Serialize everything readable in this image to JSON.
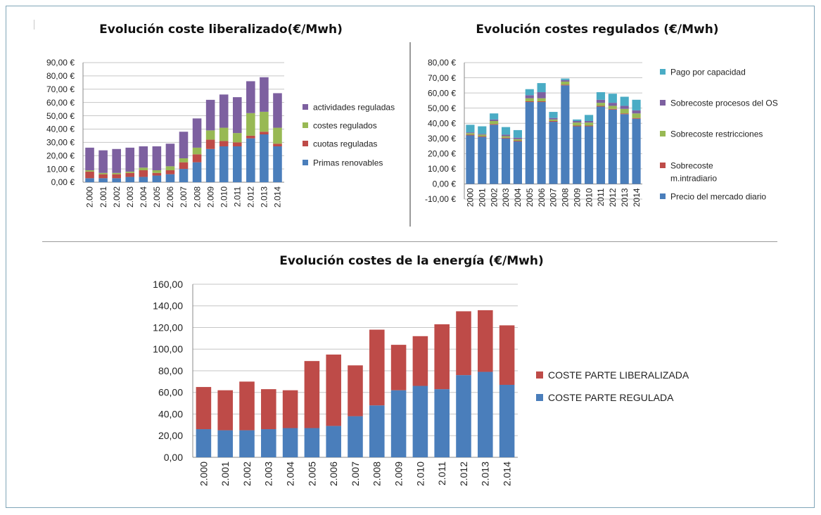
{
  "chart_data": [
    {
      "type": "bar",
      "stacked": true,
      "title": "Evolución coste liberalizado(€/Mwh)",
      "categories": [
        "2.000",
        "2.001",
        "2.002",
        "2.003",
        "2.004",
        "2.005",
        "2.006",
        "2.007",
        "2.008",
        "2.009",
        "2.010",
        "2.011",
        "2.012",
        "2.013",
        "2.014"
      ],
      "series": [
        {
          "name": "Primas renovables",
          "color": "#4a7ebb",
          "values": [
            3,
            3,
            3,
            4,
            4,
            5,
            6,
            10,
            15,
            25,
            27,
            27,
            33,
            36,
            27
          ]
        },
        {
          "name": "cuotas reguladas",
          "color": "#be4b48",
          "values": [
            5,
            3,
            3,
            3,
            5,
            2,
            3,
            5,
            6,
            7,
            4,
            3,
            2,
            2,
            2
          ]
        },
        {
          "name": "costes regulados",
          "color": "#98b954",
          "values": [
            1,
            1,
            1,
            1,
            2,
            2,
            3,
            3,
            5,
            7,
            10,
            7,
            17,
            15,
            12
          ]
        },
        {
          "name": "actividades reguladas",
          "color": "#7d60a0",
          "values": [
            17,
            17,
            18,
            18,
            16,
            18,
            17,
            20,
            22,
            23,
            25,
            27,
            24,
            26,
            26
          ]
        }
      ],
      "ylim": [
        0,
        90
      ],
      "yticks": [
        "0,00 €",
        "10,00 €",
        "20,00 €",
        "30,00 €",
        "40,00 €",
        "50,00 €",
        "60,00 €",
        "70,00 €",
        "80,00 €",
        "90,00 €"
      ]
    },
    {
      "type": "bar",
      "stacked": true,
      "title": "Evolución costes regulados (€/Mwh)",
      "categories": [
        "2000",
        "2001",
        "2002",
        "2003",
        "2004",
        "2005",
        "2006",
        "2007",
        "2008",
        "2009",
        "2010",
        "2011",
        "2012",
        "2013",
        "2014"
      ],
      "series": [
        {
          "name": "Precio del mercado diario",
          "color": "#4a7ebb",
          "values": [
            32,
            31,
            39,
            30,
            28,
            54,
            54,
            41,
            65,
            38,
            38,
            51,
            49,
            46,
            43
          ]
        },
        {
          "name": "Sobrecoste m.intradiario",
          "color": "#be4b48",
          "values": [
            0.5,
            0.5,
            0.5,
            0.5,
            0.5,
            0.5,
            0.5,
            0.5,
            0.5,
            0.5,
            0.5,
            0.5,
            0.5,
            0.5,
            0.5
          ]
        },
        {
          "name": "Sobrecoste restricciones",
          "color": "#98b954",
          "values": [
            1,
            1,
            2,
            1,
            1,
            2,
            2,
            1,
            2,
            2,
            2,
            2,
            2,
            3,
            3
          ]
        },
        {
          "name": "Sobrecoste procesos del OS",
          "color": "#7d60a0",
          "values": [
            0.5,
            0.5,
            1,
            1,
            1,
            2,
            4,
            1,
            1,
            1,
            1,
            2,
            2,
            2,
            2
          ]
        },
        {
          "name": "Pago por capacidad",
          "color": "#4aacc5",
          "values": [
            5,
            5,
            4,
            5,
            5,
            4,
            6,
            4,
            1,
            1,
            4,
            5,
            6,
            6,
            7
          ]
        }
      ],
      "ylim": [
        -10,
        80
      ],
      "yticks": [
        "-10,00 €",
        "0,00 €",
        "10,00 €",
        "20,00 €",
        "30,00 €",
        "40,00 €",
        "50,00 €",
        "60,00 €",
        "70,00 €",
        "80,00 €"
      ]
    },
    {
      "type": "bar",
      "stacked": true,
      "title": "Evolución costes de la energía (€/Mwh)",
      "categories": [
        "2.000",
        "2.001",
        "2.002",
        "2.003",
        "2.004",
        "2.005",
        "2.006",
        "2.007",
        "2.008",
        "2.009",
        "2.010",
        "2.011",
        "2.012",
        "2.013",
        "2.014"
      ],
      "series": [
        {
          "name": "COSTE PARTE REGULADA",
          "color": "#4a7ebb",
          "values": [
            26,
            25,
            25,
            26,
            27,
            27,
            29,
            38,
            48,
            62,
            66,
            63,
            76,
            79,
            67
          ]
        },
        {
          "name": "COSTE PARTE LIBERALIZADA",
          "color": "#be4b48",
          "values": [
            39,
            37,
            45,
            37,
            35,
            62,
            66,
            47,
            70,
            42,
            46,
            60,
            59,
            57,
            55
          ]
        }
      ],
      "ylim": [
        0,
        160
      ],
      "yticks": [
        "0,00",
        "20,00",
        "40,00",
        "60,00",
        "80,00",
        "100,00",
        "120,00",
        "140,00",
        "160,00"
      ]
    }
  ]
}
